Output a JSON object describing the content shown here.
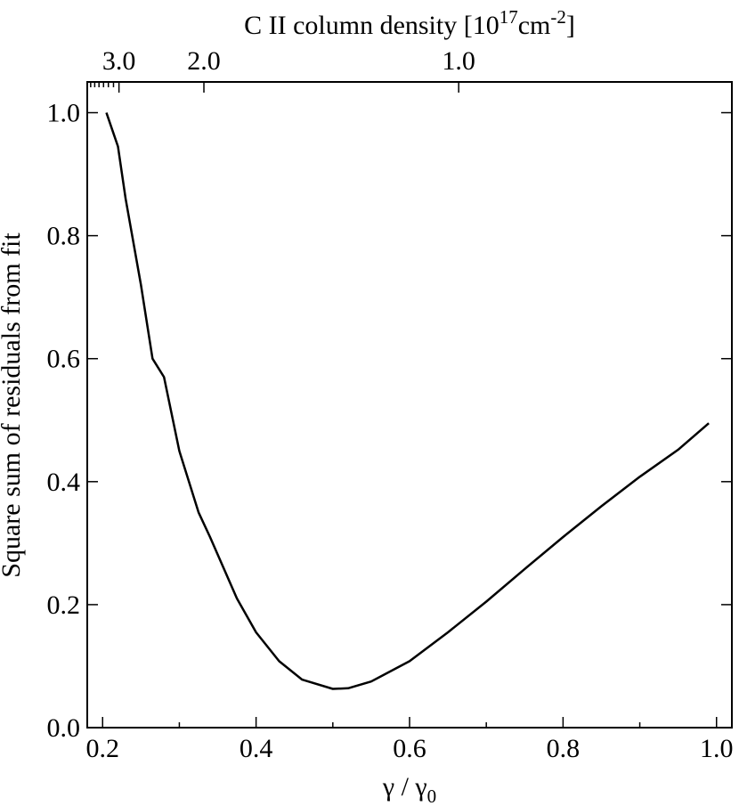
{
  "chart_data": {
    "type": "line",
    "title_parts": [
      {
        "text": "C II column density [10"
      },
      {
        "sup": "17"
      },
      {
        "text": "cm"
      },
      {
        "sup": "-2"
      },
      {
        "text": "]"
      }
    ],
    "ylabel": "Square sum of residuals from fit",
    "xlabel_parts": [
      {
        "text": "γ / γ"
      },
      {
        "sub": "0"
      }
    ],
    "x": [
      0.205,
      0.22,
      0.23,
      0.25,
      0.265,
      0.28,
      0.3,
      0.325,
      0.34,
      0.375,
      0.4,
      0.43,
      0.46,
      0.5,
      0.52,
      0.55,
      0.6,
      0.65,
      0.7,
      0.75,
      0.8,
      0.85,
      0.9,
      0.95,
      0.99
    ],
    "series": [
      {
        "color": "#000000",
        "values": [
          1.0,
          0.945,
          0.86,
          0.72,
          0.6,
          0.57,
          0.45,
          0.35,
          0.31,
          0.21,
          0.155,
          0.108,
          0.078,
          0.063,
          0.064,
          0.075,
          0.108,
          0.155,
          0.205,
          0.258,
          0.31,
          0.36,
          0.408,
          0.452,
          0.495
        ]
      }
    ],
    "xlim": [
      0.18,
      1.02
    ],
    "xticks": [
      0.2,
      0.4,
      0.6,
      0.8,
      {
        "value": 1,
        "label": "1.0"
      }
    ],
    "xminorticks": [
      0.3,
      0.5,
      0.7,
      0.9
    ],
    "ylim": [
      0,
      1.05
    ],
    "yticks": [
      {
        "value": 0,
        "label": "0.0"
      },
      0.2,
      0.4,
      0.6,
      0.8,
      {
        "value": 1,
        "label": "1.0"
      }
    ],
    "x2scale": "reciprocal",
    "x2lim": [
      3.689,
      0.651
    ],
    "x2ticks": [
      {
        "value": 3,
        "label": "3.0"
      },
      {
        "value": 2,
        "label": "2.0"
      },
      {
        "value": 1,
        "label": "1.0"
      }
    ],
    "x2minorticks": [
      3.1,
      3.2,
      3.3,
      3.4,
      3.5,
      3.6
    ]
  }
}
